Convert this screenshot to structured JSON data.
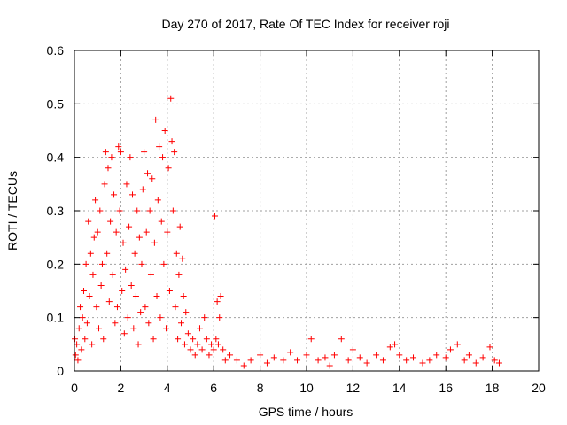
{
  "chart_data": {
    "type": "scatter",
    "title": "Day 270 of 2017, Rate Of TEC Index for receiver roji",
    "xlabel": "GPS time / hours",
    "ylabel": "ROTI / TECUs",
    "xlim": [
      0,
      20
    ],
    "ylim": [
      0,
      0.6
    ],
    "xticks": [
      0,
      2,
      4,
      6,
      8,
      10,
      12,
      14,
      16,
      18,
      20
    ],
    "yticks": [
      0,
      0.1,
      0.2,
      0.3,
      0.4,
      0.5,
      0.6
    ],
    "xtick_labels": [
      "0",
      "2",
      "4",
      "6",
      "8",
      "10",
      "12",
      "14",
      "16",
      "18",
      "20"
    ],
    "ytick_labels": [
      "0",
      "0.1",
      "0.2",
      "0.3",
      "0.4",
      "0.5",
      "0.6"
    ],
    "grid": true,
    "marker": "+",
    "color": "#ff0000",
    "series": [
      {
        "name": "ROTI",
        "points": [
          [
            0.02,
            0.06
          ],
          [
            0.05,
            0.03
          ],
          [
            0.1,
            0.05
          ],
          [
            0.15,
            0.02
          ],
          [
            0.2,
            0.08
          ],
          [
            0.25,
            0.12
          ],
          [
            0.3,
            0.04
          ],
          [
            0.35,
            0.1
          ],
          [
            0.4,
            0.15
          ],
          [
            0.45,
            0.06
          ],
          [
            0.5,
            0.2
          ],
          [
            0.55,
            0.09
          ],
          [
            0.6,
            0.28
          ],
          [
            0.65,
            0.14
          ],
          [
            0.7,
            0.22
          ],
          [
            0.75,
            0.05
          ],
          [
            0.8,
            0.18
          ],
          [
            0.85,
            0.25
          ],
          [
            0.9,
            0.32
          ],
          [
            0.95,
            0.12
          ],
          [
            1.0,
            0.26
          ],
          [
            1.05,
            0.08
          ],
          [
            1.1,
            0.3
          ],
          [
            1.15,
            0.16
          ],
          [
            1.2,
            0.2
          ],
          [
            1.25,
            0.06
          ],
          [
            1.3,
            0.35
          ],
          [
            1.35,
            0.41
          ],
          [
            1.4,
            0.22
          ],
          [
            1.45,
            0.38
          ],
          [
            1.5,
            0.13
          ],
          [
            1.55,
            0.28
          ],
          [
            1.6,
            0.4
          ],
          [
            1.65,
            0.18
          ],
          [
            1.7,
            0.33
          ],
          [
            1.75,
            0.09
          ],
          [
            1.8,
            0.26
          ],
          [
            1.85,
            0.12
          ],
          [
            1.9,
            0.42
          ],
          [
            1.95,
            0.3
          ],
          [
            2.0,
            0.41
          ],
          [
            2.05,
            0.15
          ],
          [
            2.1,
            0.24
          ],
          [
            2.15,
            0.07
          ],
          [
            2.2,
            0.19
          ],
          [
            2.25,
            0.35
          ],
          [
            2.3,
            0.1
          ],
          [
            2.35,
            0.27
          ],
          [
            2.4,
            0.4
          ],
          [
            2.45,
            0.16
          ],
          [
            2.5,
            0.33
          ],
          [
            2.55,
            0.08
          ],
          [
            2.6,
            0.22
          ],
          [
            2.65,
            0.14
          ],
          [
            2.7,
            0.3
          ],
          [
            2.75,
            0.05
          ],
          [
            2.8,
            0.25
          ],
          [
            2.85,
            0.11
          ],
          [
            2.9,
            0.2
          ],
          [
            2.95,
            0.34
          ],
          [
            3.0,
            0.41
          ],
          [
            3.05,
            0.12
          ],
          [
            3.1,
            0.26
          ],
          [
            3.15,
            0.37
          ],
          [
            3.2,
            0.09
          ],
          [
            3.25,
            0.3
          ],
          [
            3.3,
            0.18
          ],
          [
            3.35,
            0.36
          ],
          [
            3.4,
            0.06
          ],
          [
            3.45,
            0.24
          ],
          [
            3.5,
            0.47
          ],
          [
            3.55,
            0.14
          ],
          [
            3.6,
            0.32
          ],
          [
            3.65,
            0.42
          ],
          [
            3.7,
            0.1
          ],
          [
            3.75,
            0.28
          ],
          [
            3.8,
            0.4
          ],
          [
            3.85,
            0.2
          ],
          [
            3.9,
            0.45
          ],
          [
            3.95,
            0.08
          ],
          [
            4.0,
            0.26
          ],
          [
            4.05,
            0.38
          ],
          [
            4.1,
            0.15
          ],
          [
            4.15,
            0.51
          ],
          [
            4.2,
            0.43
          ],
          [
            4.25,
            0.3
          ],
          [
            4.3,
            0.41
          ],
          [
            4.35,
            0.12
          ],
          [
            4.4,
            0.22
          ],
          [
            4.45,
            0.06
          ],
          [
            4.5,
            0.18
          ],
          [
            4.55,
            0.27
          ],
          [
            4.6,
            0.09
          ],
          [
            4.65,
            0.21
          ],
          [
            4.7,
            0.14
          ],
          [
            4.75,
            0.05
          ],
          [
            4.8,
            0.11
          ],
          [
            4.9,
            0.07
          ],
          [
            5.0,
            0.04
          ],
          [
            5.1,
            0.06
          ],
          [
            5.2,
            0.03
          ],
          [
            5.3,
            0.05
          ],
          [
            5.4,
            0.08
          ],
          [
            5.5,
            0.04
          ],
          [
            5.6,
            0.1
          ],
          [
            5.7,
            0.06
          ],
          [
            5.8,
            0.03
          ],
          [
            5.9,
            0.05
          ],
          [
            6.0,
            0.04
          ],
          [
            6.05,
            0.29
          ],
          [
            6.1,
            0.06
          ],
          [
            6.15,
            0.13
          ],
          [
            6.2,
            0.05
          ],
          [
            6.25,
            0.1
          ],
          [
            6.3,
            0.14
          ],
          [
            6.4,
            0.04
          ],
          [
            6.5,
            0.02
          ],
          [
            6.7,
            0.03
          ],
          [
            7.0,
            0.02
          ],
          [
            7.3,
            0.01
          ],
          [
            7.6,
            0.02
          ],
          [
            8.0,
            0.03
          ],
          [
            8.3,
            0.015
          ],
          [
            8.6,
            0.025
          ],
          [
            9.0,
            0.02
          ],
          [
            9.3,
            0.035
          ],
          [
            9.6,
            0.02
          ],
          [
            10.0,
            0.03
          ],
          [
            10.2,
            0.06
          ],
          [
            10.5,
            0.02
          ],
          [
            10.8,
            0.025
          ],
          [
            11.0,
            0.01
          ],
          [
            11.2,
            0.03
          ],
          [
            11.5,
            0.06
          ],
          [
            11.8,
            0.02
          ],
          [
            12.0,
            0.04
          ],
          [
            12.3,
            0.025
          ],
          [
            12.6,
            0.015
          ],
          [
            13.0,
            0.03
          ],
          [
            13.3,
            0.02
          ],
          [
            13.6,
            0.045
          ],
          [
            13.8,
            0.05
          ],
          [
            14.0,
            0.03
          ],
          [
            14.3,
            0.02
          ],
          [
            14.6,
            0.025
          ],
          [
            15.0,
            0.015
          ],
          [
            15.3,
            0.02
          ],
          [
            15.6,
            0.03
          ],
          [
            16.0,
            0.025
          ],
          [
            16.2,
            0.04
          ],
          [
            16.5,
            0.05
          ],
          [
            16.8,
            0.02
          ],
          [
            17.0,
            0.03
          ],
          [
            17.3,
            0.015
          ],
          [
            17.6,
            0.025
          ],
          [
            17.9,
            0.045
          ],
          [
            18.1,
            0.02
          ],
          [
            18.3,
            0.015
          ]
        ]
      }
    ]
  }
}
